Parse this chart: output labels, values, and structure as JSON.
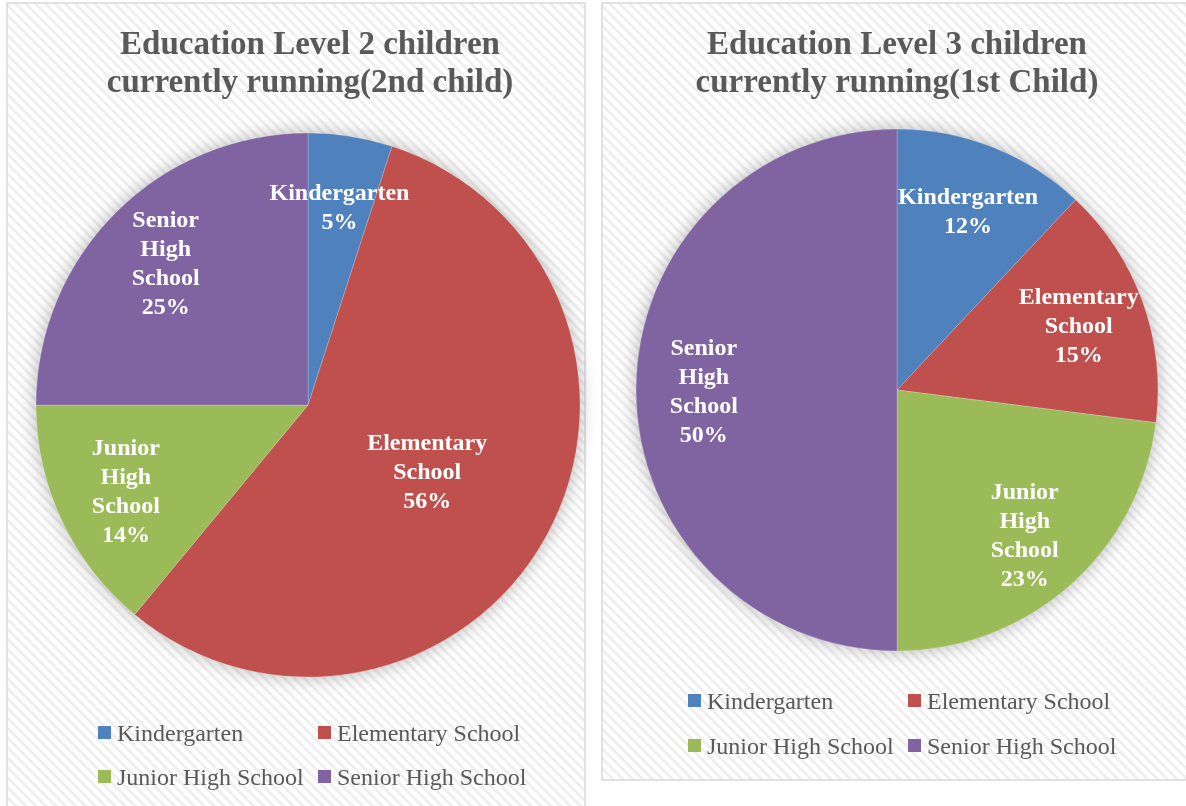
{
  "chart_data": [
    {
      "type": "pie",
      "title": "Education Level 2 children currently running(2nd child)",
      "categories": [
        "Kindergarten",
        "Elementary School",
        "Junior High School",
        "Senior High School"
      ],
      "values": [
        5,
        56,
        14,
        25
      ],
      "value_labels": [
        "5%",
        "56%",
        "14%",
        "25%"
      ],
      "colors": [
        "#4f81bd",
        "#c0504d",
        "#9bbb59",
        "#8064a2"
      ],
      "legend": "bottom"
    },
    {
      "type": "pie",
      "title": "Education Level 3 children currently running(1st Child)",
      "categories": [
        "Kindergarten",
        "Elementary School",
        "Junior High School",
        "Senior High School"
      ],
      "values": [
        12,
        15,
        23,
        50
      ],
      "value_labels": [
        "12%",
        "15%",
        "23%",
        "50%"
      ],
      "colors": [
        "#4f81bd",
        "#c0504d",
        "#9bbb59",
        "#8064a2"
      ],
      "legend": "bottom"
    }
  ]
}
